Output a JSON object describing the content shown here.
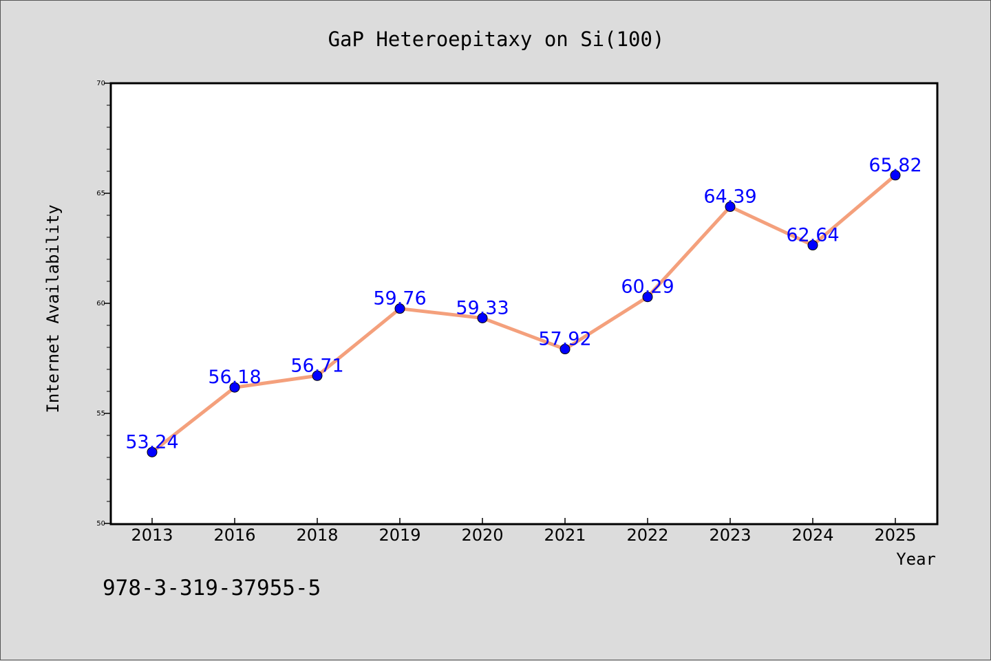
{
  "chart_data": {
    "type": "line",
    "title": "GaP Heteroepitaxy on Si(100)",
    "xlabel": "Year",
    "ylabel": "Internet Availability",
    "categories": [
      "2013",
      "2016",
      "2018",
      "2019",
      "2020",
      "2021",
      "2022",
      "2023",
      "2024",
      "2025"
    ],
    "series": [
      {
        "values": [
          53.24,
          56.18,
          56.71,
          59.76,
          59.33,
          57.92,
          60.29,
          64.39,
          62.64,
          65.82
        ],
        "data_labels": [
          "53.24",
          "56.18",
          "56.71",
          "59.76",
          "59.33",
          "57.92",
          "60.29",
          "64.39",
          "62.64",
          "65.82"
        ]
      }
    ],
    "ylim": [
      50,
      70
    ],
    "y_major_ticks": [
      50,
      55,
      60,
      65,
      70
    ],
    "y_major_tick_labels": [
      "50",
      "55",
      "60",
      "65",
      "70"
    ],
    "y_minor_step": 1,
    "grid": false,
    "legend": "none",
    "annotation": "978-3-319-37955-5",
    "colors": {
      "background": "#dcdcdc",
      "plot_background": "#ffffff",
      "line": "#f4a07c",
      "marker": "#0000ff",
      "data_label": "#0000ff",
      "text": "#000000"
    }
  }
}
